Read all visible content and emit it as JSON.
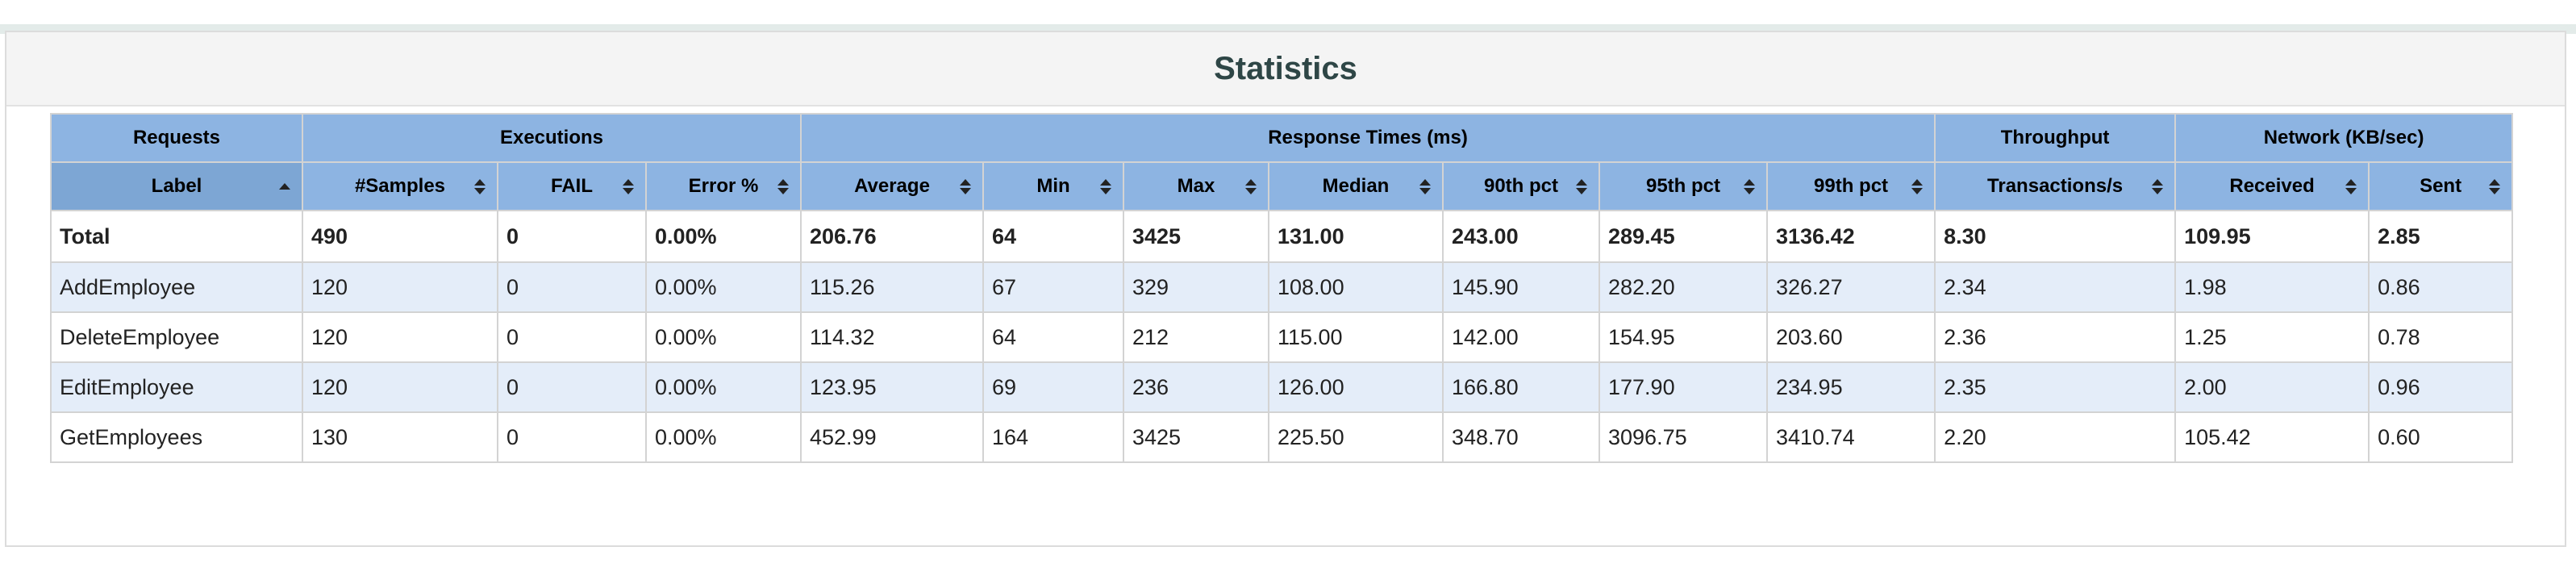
{
  "title": "Statistics",
  "groups": [
    {
      "label": "Requests",
      "span": 1
    },
    {
      "label": "Executions",
      "span": 3
    },
    {
      "label": "Response Times (ms)",
      "span": 7
    },
    {
      "label": "Throughput",
      "span": 1
    },
    {
      "label": "Network (KB/sec)",
      "span": 2
    }
  ],
  "columns": [
    {
      "label": "Label",
      "sort": "asc"
    },
    {
      "label": "#Samples",
      "sort": "both"
    },
    {
      "label": "FAIL",
      "sort": "both"
    },
    {
      "label": "Error %",
      "sort": "both"
    },
    {
      "label": "Average",
      "sort": "both"
    },
    {
      "label": "Min",
      "sort": "both"
    },
    {
      "label": "Max",
      "sort": "both"
    },
    {
      "label": "Median",
      "sort": "both"
    },
    {
      "label": "90th pct",
      "sort": "both"
    },
    {
      "label": "95th pct",
      "sort": "both"
    },
    {
      "label": "99th pct",
      "sort": "both"
    },
    {
      "label": "Transactions/s",
      "sort": "both"
    },
    {
      "label": "Received",
      "sort": "both"
    },
    {
      "label": "Sent",
      "sort": "both"
    }
  ],
  "total": [
    "Total",
    "490",
    "0",
    "0.00%",
    "206.76",
    "64",
    "3425",
    "131.00",
    "243.00",
    "289.45",
    "3136.42",
    "8.30",
    "109.95",
    "2.85"
  ],
  "rows": [
    [
      "AddEmployee",
      "120",
      "0",
      "0.00%",
      "115.26",
      "67",
      "329",
      "108.00",
      "145.90",
      "282.20",
      "326.27",
      "2.34",
      "1.98",
      "0.86"
    ],
    [
      "DeleteEmployee",
      "120",
      "0",
      "0.00%",
      "114.32",
      "64",
      "212",
      "115.00",
      "142.00",
      "154.95",
      "203.60",
      "2.36",
      "1.25",
      "0.78"
    ],
    [
      "EditEmployee",
      "120",
      "0",
      "0.00%",
      "123.95",
      "69",
      "236",
      "126.00",
      "166.80",
      "177.90",
      "234.95",
      "2.35",
      "2.00",
      "0.96"
    ],
    [
      "GetEmployees",
      "130",
      "0",
      "0.00%",
      "452.99",
      "164",
      "3425",
      "225.50",
      "348.70",
      "3096.75",
      "3410.74",
      "2.20",
      "105.42",
      "0.60"
    ]
  ]
}
